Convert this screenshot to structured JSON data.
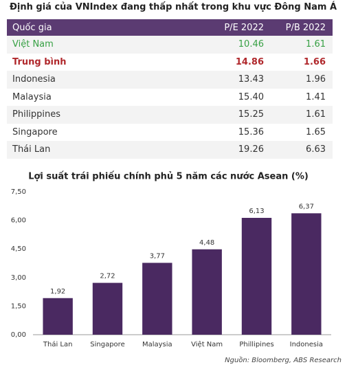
{
  "table": {
    "title": "Định giá của VNIndex đang thấp nhất trong khu vực Đông Nam Á",
    "header": [
      "Quốc gia",
      "P/E 2022",
      "P/B 2022"
    ],
    "rows": [
      [
        "Việt Nam",
        "10.46",
        "1.61"
      ],
      [
        "Trung bình",
        "14.86",
        "1.66"
      ],
      [
        "Indonesia",
        "13.43",
        "1.96"
      ],
      [
        "Malaysia",
        "15.40",
        "1.41"
      ],
      [
        "Philippines",
        "15.25",
        "1.61"
      ],
      [
        "Singapore",
        "15.36",
        "1.65"
      ],
      [
        "Thái Lan",
        "19.26",
        "6.63"
      ]
    ]
  },
  "chart_data": {
    "type": "bar",
    "title": "Lợi suất trái phiếu chính phủ 5 năm các nước Asean (%)",
    "categories": [
      "Thái Lan",
      "Singapore",
      "Malaysia",
      "Việt Nam",
      "Phillipines",
      "Indonesia"
    ],
    "values": [
      1.92,
      2.72,
      3.77,
      4.48,
      6.13,
      6.37
    ],
    "value_labels": [
      "1,92",
      "2,72",
      "3,77",
      "4,48",
      "6,13",
      "6,37"
    ],
    "color": "#4a2961",
    "ylim": [
      0,
      7.5
    ],
    "yticks": [
      {
        "value": 0,
        "label": "0,00"
      },
      {
        "value": 1.5,
        "label": "1,50"
      },
      {
        "value": 3,
        "label": "3,00"
      },
      {
        "value": 4.5,
        "label": "4,50"
      },
      {
        "value": 6,
        "label": "6,00"
      },
      {
        "value": 7.5,
        "label": "7,50"
      }
    ]
  },
  "source": "Nguồn: Bloomberg, ABS Research"
}
